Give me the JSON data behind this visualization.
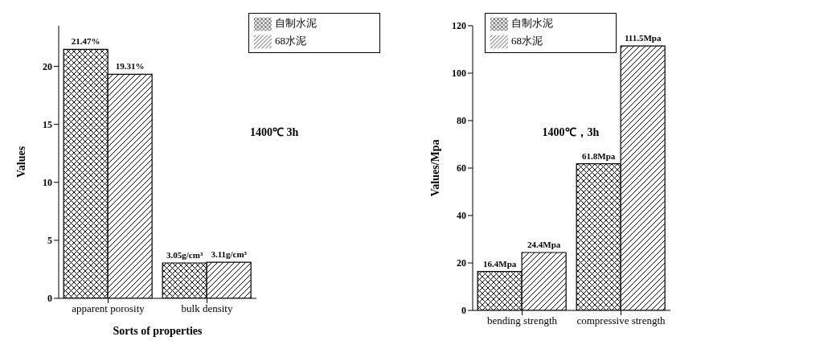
{
  "chart_data": [
    {
      "type": "bar",
      "categories": [
        "apparent porosity",
        "bulk density"
      ],
      "xlabel": "Sorts of properties",
      "ylabel": "Values",
      "ylim": [
        0,
        23.5
      ],
      "yticks": [
        0,
        5,
        10,
        15,
        20
      ],
      "legend": "top right",
      "annotations": [
        "1400℃ 3h"
      ],
      "series": [
        {
          "name": "自制水泥",
          "color": "#000000",
          "values": [
            21.47,
            3.05
          ],
          "value_labels": [
            "21.47%",
            "3.05g/cm³"
          ]
        },
        {
          "name": "68水泥",
          "color": "#000000",
          "values": [
            19.31,
            3.11
          ],
          "value_labels": [
            "19.31%",
            "3.11g/cm³"
          ]
        }
      ]
    },
    {
      "type": "bar",
      "categories": [
        "bending strength",
        "compressive strength"
      ],
      "ylabel": "Values/Mpa",
      "ylim": [
        0,
        120
      ],
      "yticks": [
        0,
        20,
        40,
        60,
        80,
        100,
        120
      ],
      "legend": "top left",
      "annotations": [
        "1400℃，3h"
      ],
      "series": [
        {
          "name": "自制水泥",
          "color": "#000000",
          "values": [
            16.4,
            61.8
          ],
          "value_labels": [
            "16.4Mpa",
            "61.8Mpa"
          ]
        },
        {
          "name": "68水泥",
          "color": "#000000",
          "values": [
            24.4,
            111.5
          ],
          "value_labels": [
            "24.4Mpa",
            "111.5Mpa"
          ]
        }
      ]
    }
  ]
}
